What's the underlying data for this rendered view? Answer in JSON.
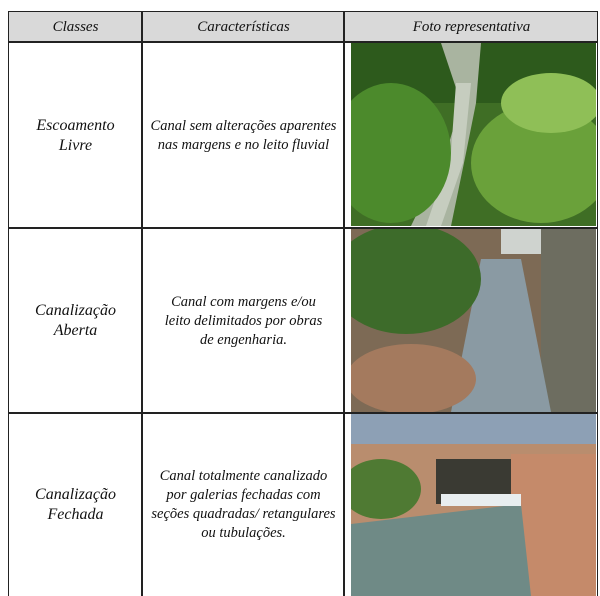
{
  "table": {
    "header": [
      "Classes",
      "Características",
      "Foto representativa"
    ],
    "rows": [
      [
        "Escoamento Livre",
        "Canal sem alterações aparentes nas margens e no leito fluvial"
      ],
      [
        "Canalização Aberta",
        "Canal com margens e/ou leito delimitados por obras de engenharia."
      ],
      [
        "Canalização Fechada",
        "Canal totalmente canalizado por galerias fechadas com seções quadradas/ retangulares ou tubulações."
      ]
    ]
  }
}
